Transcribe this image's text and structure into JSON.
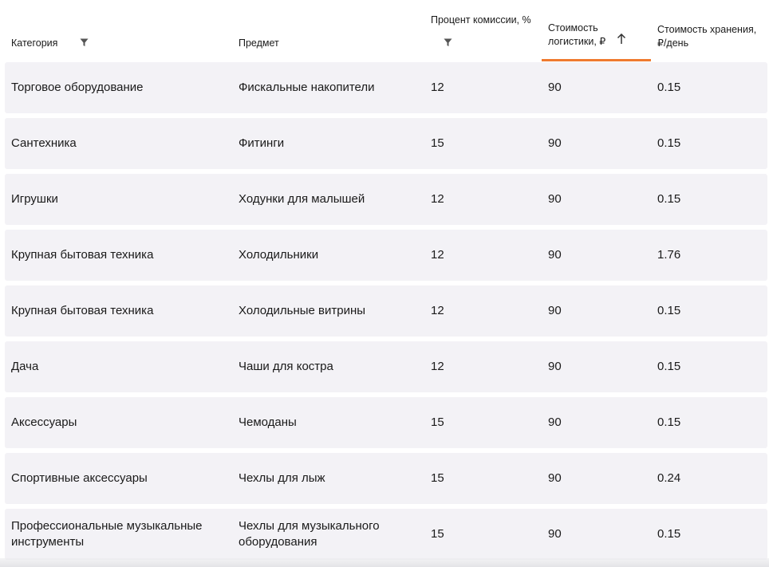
{
  "columns": {
    "category": "Категория",
    "subject": "Предмет",
    "commission": "Процент комиссии, %",
    "logistics_line1": "Стоимость",
    "logistics_line2": "логистики, ₽",
    "storage_line1": "Стоимость хранения,",
    "storage_line2": "₽/день"
  },
  "sort": {
    "column": "logistics",
    "direction": "ascending",
    "accent_color": "#ef7a2f"
  },
  "icons": {
    "filter": "filter-icon",
    "sort": "arrow-up-icon"
  },
  "rows": [
    {
      "category": "Торговое оборудование",
      "subject": "Фискальные накопители",
      "commission": "12",
      "logistics": "90",
      "storage": "0.15"
    },
    {
      "category": "Сантехника",
      "subject": "Фитинги",
      "commission": "15",
      "logistics": "90",
      "storage": "0.15"
    },
    {
      "category": "Игрушки",
      "subject": "Ходунки для малышей",
      "commission": "12",
      "logistics": "90",
      "storage": "0.15"
    },
    {
      "category": "Крупная бытовая техника",
      "subject": "Холодильники",
      "commission": "12",
      "logistics": "90",
      "storage": "1.76"
    },
    {
      "category": "Крупная бытовая техника",
      "subject": "Холодильные витрины",
      "commission": "12",
      "logistics": "90",
      "storage": "0.15"
    },
    {
      "category": "Дача",
      "subject": "Чаши для костра",
      "commission": "12",
      "logistics": "90",
      "storage": "0.15"
    },
    {
      "category": "Аксессуары",
      "subject": "Чемоданы",
      "commission": "15",
      "logistics": "90",
      "storage": "0.15"
    },
    {
      "category": "Спортивные аксессуары",
      "subject": "Чехлы для лыж",
      "commission": "15",
      "logistics": "90",
      "storage": "0.24"
    },
    {
      "category": "Профессиональные музыкальные инструменты",
      "subject": "Чехлы для музыкального оборудования",
      "commission": "15",
      "logistics": "90",
      "storage": "0.15"
    }
  ]
}
